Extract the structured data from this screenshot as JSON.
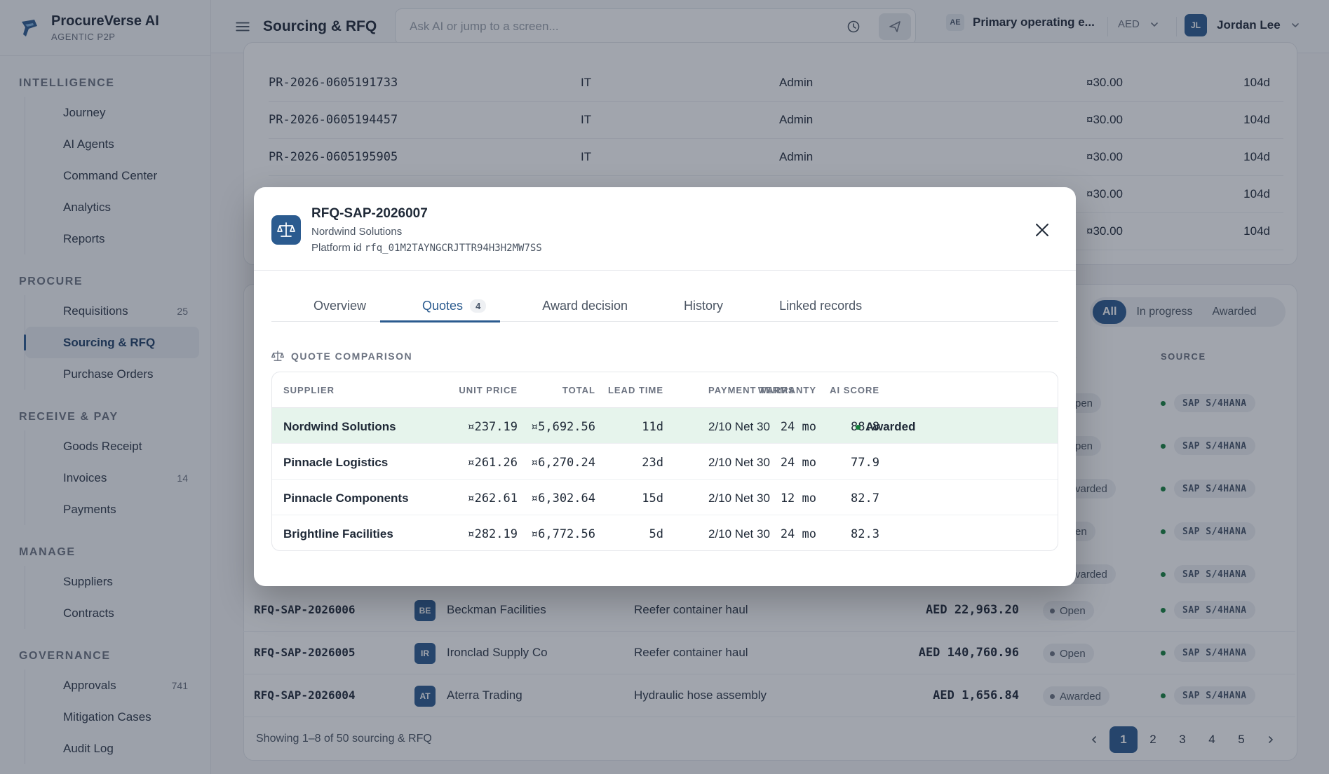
{
  "brand": {
    "name": "ProcureVerse AI",
    "tagline": "AGENTIC P2P"
  },
  "sidebar": {
    "sections": [
      {
        "title": "INTELLIGENCE",
        "items": [
          {
            "label": "Journey",
            "icon": "journey-icon",
            "count": ""
          },
          {
            "label": "AI Agents",
            "icon": "ai-agents-icon",
            "count": ""
          },
          {
            "label": "Command Center",
            "icon": "command-center-icon",
            "count": ""
          },
          {
            "label": "Analytics",
            "icon": "analytics-icon",
            "count": ""
          },
          {
            "label": "Reports",
            "icon": "reports-icon",
            "count": ""
          }
        ]
      },
      {
        "title": "PROCURE",
        "items": [
          {
            "label": "Requisitions",
            "icon": "requisitions-icon",
            "count": "25"
          },
          {
            "label": "Sourcing & RFQ",
            "icon": "scale-icon",
            "count": "",
            "active": true
          },
          {
            "label": "Purchase Orders",
            "icon": "purchase-orders-icon",
            "count": ""
          }
        ]
      },
      {
        "title": "RECEIVE & PAY",
        "items": [
          {
            "label": "Goods Receipt",
            "icon": "goods-receipt-icon",
            "count": ""
          },
          {
            "label": "Invoices",
            "icon": "invoices-icon",
            "count": "14"
          },
          {
            "label": "Payments",
            "icon": "payments-icon",
            "count": ""
          }
        ]
      },
      {
        "title": "MANAGE",
        "items": [
          {
            "label": "Suppliers",
            "icon": "suppliers-icon",
            "count": ""
          },
          {
            "label": "Contracts",
            "icon": "contracts-icon",
            "count": ""
          }
        ]
      },
      {
        "title": "GOVERNANCE",
        "items": [
          {
            "label": "Approvals",
            "icon": "check-icon",
            "count": "741"
          },
          {
            "label": "Mitigation Cases",
            "icon": "shield-icon",
            "count": ""
          },
          {
            "label": "Audit Log",
            "icon": "audit-log-icon",
            "count": ""
          }
        ]
      }
    ]
  },
  "header": {
    "title": "Sourcing & RFQ",
    "search_placeholder": "Ask AI or jump to a screen...",
    "entity_code": "AE",
    "entity_name": "Primary operating e...",
    "currency": "AED",
    "user_initials": "JL",
    "user_name": "Jordan Lee"
  },
  "background": {
    "pr_rows": [
      {
        "id": "PR-2026-0605191733",
        "dept": "IT",
        "requester": "Admin",
        "amount": "¤30.00",
        "age": "104d"
      },
      {
        "id": "PR-2026-0605194457",
        "dept": "IT",
        "requester": "Admin",
        "amount": "¤30.00",
        "age": "104d"
      },
      {
        "id": "PR-2026-0605195905",
        "dept": "IT",
        "requester": "Admin",
        "amount": "¤30.00",
        "age": "104d"
      },
      {
        "id": "",
        "dept": "",
        "requester": "",
        "amount": "¤30.00",
        "age": "104d"
      },
      {
        "id": "",
        "dept": "",
        "requester": "",
        "amount": "¤30.00",
        "age": "104d"
      }
    ],
    "filters": [
      "All",
      "In progress",
      "Awarded"
    ],
    "col_status_partial": "S",
    "col_source": "SOURCE",
    "hidden_rows": [
      {
        "status_partial": "pen",
        "source": "SAP S/4HANA"
      },
      {
        "status_partial": "pen",
        "source": "SAP S/4HANA"
      },
      {
        "status_partial": "varded",
        "source": "SAP S/4HANA"
      },
      {
        "status_partial": "en",
        "source": "SAP S/4HANA"
      },
      {
        "status_partial": "varded",
        "source": "SAP S/4HANA"
      }
    ],
    "rfq_rows": [
      {
        "id": "RFQ-SAP-2026006",
        "initials": "BE",
        "supplier": "Beckman Facilities",
        "description": "Reefer container haul",
        "amount": "AED 22,963.20",
        "status": "Open",
        "source": "SAP S/4HANA"
      },
      {
        "id": "RFQ-SAP-2026005",
        "initials": "IR",
        "supplier": "Ironclad Supply Co",
        "description": "Reefer container haul",
        "amount": "AED 140,760.96",
        "status": "Open",
        "source": "SAP S/4HANA"
      },
      {
        "id": "RFQ-SAP-2026004",
        "initials": "AT",
        "supplier": "Aterra Trading",
        "description": "Hydraulic hose assembly",
        "amount": "AED 1,656.84",
        "status": "Awarded",
        "source": "SAP S/4HANA"
      }
    ],
    "footer": "Showing 1–8 of 50 sourcing & RFQ",
    "pages": [
      "1",
      "2",
      "3",
      "4",
      "5"
    ]
  },
  "modal": {
    "title": "RFQ-SAP-2026007",
    "subtitle": "Nordwind Solutions",
    "platform_label": "Platform id",
    "platform_id": "rfq_01M2TAYNGCRJTTR94H3H2MW7SS",
    "tabs": [
      {
        "label": "Overview",
        "icon": "document-icon",
        "count": ""
      },
      {
        "label": "Quotes",
        "icon": "scale-icon",
        "count": "4",
        "active": true
      },
      {
        "label": "Award decision",
        "icon": "scale-icon",
        "count": ""
      },
      {
        "label": "History",
        "icon": "history-icon",
        "count": ""
      },
      {
        "label": "Linked records",
        "icon": "link-icon",
        "count": ""
      }
    ],
    "section_title": "QUOTE COMPARISON",
    "columns": [
      "SUPPLIER",
      "UNIT PRICE",
      "TOTAL",
      "LEAD TIME",
      "PAYMENT TERMS",
      "WARRANTY",
      "AI SCORE"
    ],
    "quotes": [
      {
        "supplier": "Nordwind Solutions",
        "unit_price": "¤237.19",
        "total": "¤5,692.56",
        "lead_time": "11d",
        "payment_terms": "2/10 Net 30",
        "warranty": "24 mo",
        "ai_score": "88.8",
        "status": "Awarded"
      },
      {
        "supplier": "Pinnacle Logistics",
        "unit_price": "¤261.26",
        "total": "¤6,270.24",
        "lead_time": "23d",
        "payment_terms": "2/10 Net 30",
        "warranty": "24 mo",
        "ai_score": "77.9",
        "status": ""
      },
      {
        "supplier": "Pinnacle Components",
        "unit_price": "¤262.61",
        "total": "¤6,302.64",
        "lead_time": "15d",
        "payment_terms": "2/10 Net 30",
        "warranty": "12 mo",
        "ai_score": "82.7",
        "status": ""
      },
      {
        "supplier": "Brightline Facilities",
        "unit_price": "¤282.19",
        "total": "¤6,772.56",
        "lead_time": "5d",
        "payment_terms": "2/10 Net 30",
        "warranty": "24 mo",
        "ai_score": "82.3",
        "status": ""
      }
    ]
  },
  "colors": {
    "accent": "#2b5b8f",
    "awarded_bg": "#e6f4ec",
    "success": "#15803d"
  }
}
